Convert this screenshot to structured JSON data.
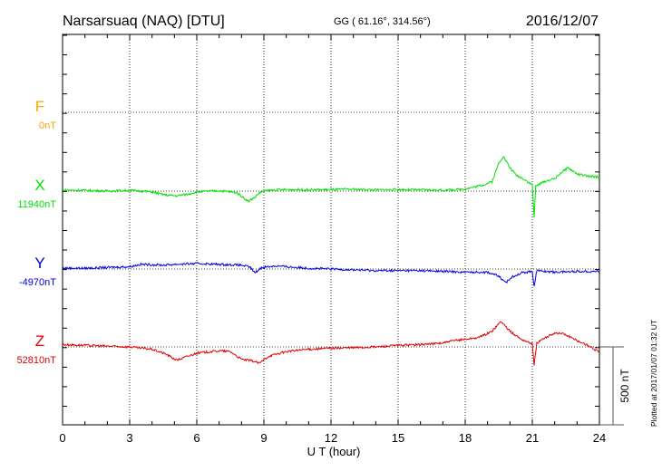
{
  "header": {
    "station": "Narsarsuaq (NAQ)  [DTU]",
    "coords": "GG ( 61.16°, 314.56°)",
    "date": "2016/12/07"
  },
  "footer": {
    "plotted": "Plotted at 2017/01/07 01:32 UT",
    "scale_label": "500 nT"
  },
  "chart_data": {
    "type": "line",
    "title": "Narsarsuaq (NAQ)  [DTU]",
    "xlabel": "U T (hour)",
    "xlim": [
      0,
      24
    ],
    "xticks": [
      "0",
      "3",
      "6",
      "9",
      "12",
      "15",
      "18",
      "21",
      "24"
    ],
    "scale_nT": 500,
    "grid": true,
    "series": [
      {
        "name": "F",
        "baseline_label": "0nT",
        "color": "#f5a800",
        "points": []
      },
      {
        "name": "X",
        "baseline_label": "11940nT",
        "color": "#00e000",
        "points": [
          [
            0,
            6
          ],
          [
            1,
            5
          ],
          [
            2,
            0
          ],
          [
            3,
            5
          ],
          [
            4,
            -5
          ],
          [
            4.6,
            -25
          ],
          [
            5.1,
            -30
          ],
          [
            5.6,
            -20
          ],
          [
            6,
            -5
          ],
          [
            7,
            3
          ],
          [
            7.8,
            -10
          ],
          [
            8.3,
            -65
          ],
          [
            8.6,
            -40
          ],
          [
            8.8,
            -10
          ],
          [
            9.2,
            5
          ],
          [
            10,
            10
          ],
          [
            11,
            8
          ],
          [
            12,
            10
          ],
          [
            13,
            12
          ],
          [
            14,
            8
          ],
          [
            15,
            10
          ],
          [
            16,
            8
          ],
          [
            17,
            6
          ],
          [
            17.7,
            10
          ],
          [
            18.2,
            20
          ],
          [
            18.8,
            40
          ],
          [
            19.2,
            60
          ],
          [
            19.5,
            180
          ],
          [
            19.7,
            225
          ],
          [
            20,
            150
          ],
          [
            20.3,
            100
          ],
          [
            20.6,
            80
          ],
          [
            21,
            40
          ],
          [
            21.08,
            -170
          ],
          [
            21.15,
            30
          ],
          [
            21.5,
            60
          ],
          [
            22,
            80
          ],
          [
            22.3,
            120
          ],
          [
            22.6,
            150
          ],
          [
            23,
            110
          ],
          [
            23.5,
            95
          ],
          [
            24,
            90
          ]
        ]
      },
      {
        "name": "Y",
        "baseline_label": "-4970nT",
        "color": "#0000e0",
        "points": [
          [
            0,
            6
          ],
          [
            1,
            5
          ],
          [
            2,
            10
          ],
          [
            3,
            15
          ],
          [
            3.5,
            30
          ],
          [
            4.5,
            25
          ],
          [
            5,
            30
          ],
          [
            6,
            35
          ],
          [
            7,
            30
          ],
          [
            8,
            25
          ],
          [
            8.4,
            10
          ],
          [
            8.6,
            -25
          ],
          [
            8.9,
            10
          ],
          [
            9.5,
            20
          ],
          [
            10,
            15
          ],
          [
            11,
            5
          ],
          [
            12,
            0
          ],
          [
            13,
            -5
          ],
          [
            14,
            -10
          ],
          [
            15,
            -10
          ],
          [
            16,
            -10
          ],
          [
            17,
            -15
          ],
          [
            18,
            -20
          ],
          [
            19,
            -20
          ],
          [
            19.5,
            -45
          ],
          [
            19.8,
            -90
          ],
          [
            20.1,
            -50
          ],
          [
            20.5,
            -25
          ],
          [
            21,
            -15
          ],
          [
            21.08,
            -110
          ],
          [
            21.2,
            -10
          ],
          [
            21.6,
            -15
          ],
          [
            22,
            -20
          ],
          [
            23,
            -15
          ],
          [
            24,
            -15
          ]
        ]
      },
      {
        "name": "Z",
        "baseline_label": "52810nT",
        "color": "#e00000",
        "points": [
          [
            0,
            15
          ],
          [
            1,
            10
          ],
          [
            2,
            5
          ],
          [
            3,
            0
          ],
          [
            4,
            -15
          ],
          [
            4.6,
            -45
          ],
          [
            5.1,
            -85
          ],
          [
            5.6,
            -60
          ],
          [
            6,
            -40
          ],
          [
            7,
            -25
          ],
          [
            7.5,
            -30
          ],
          [
            8,
            -80
          ],
          [
            8.5,
            -90
          ],
          [
            8.8,
            -105
          ],
          [
            9.2,
            -60
          ],
          [
            10,
            -30
          ],
          [
            11,
            -15
          ],
          [
            12,
            -8
          ],
          [
            13,
            -5
          ],
          [
            14,
            0
          ],
          [
            15,
            10
          ],
          [
            16,
            15
          ],
          [
            17,
            25
          ],
          [
            17.5,
            40
          ],
          [
            18,
            50
          ],
          [
            18.6,
            60
          ],
          [
            19.2,
            100
          ],
          [
            19.6,
            165
          ],
          [
            20,
            100
          ],
          [
            20.5,
            50
          ],
          [
            21,
            20
          ],
          [
            21.08,
            -120
          ],
          [
            21.2,
            25
          ],
          [
            21.6,
            60
          ],
          [
            22,
            90
          ],
          [
            22.4,
            85
          ],
          [
            23,
            40
          ],
          [
            23.5,
            10
          ],
          [
            24,
            -35
          ]
        ]
      }
    ]
  }
}
